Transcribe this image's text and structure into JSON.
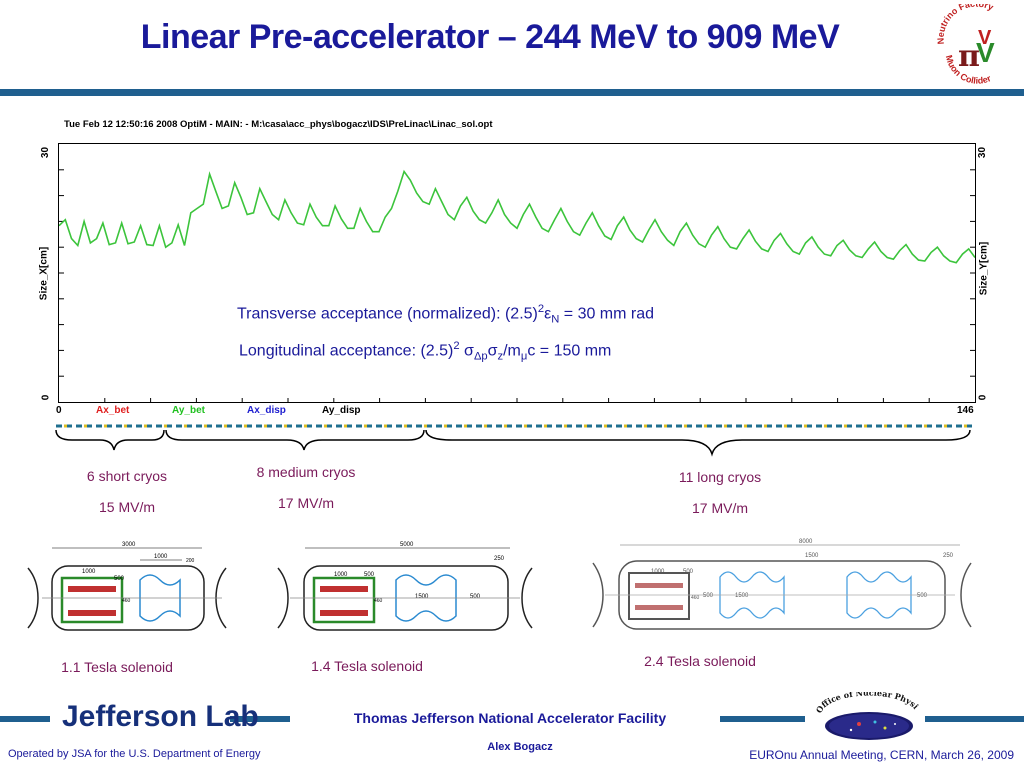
{
  "title": "Linear Pre-accelerator – 244 MeV to 909 MeV",
  "logo": {
    "lines": [
      "Neutrino Factory",
      "Muon Collider"
    ],
    "glyph": "πV"
  },
  "plot": {
    "header": "Tue Feb 12 12:50:16 2008    OptiM - MAIN: - M:\\casa\\acc_phys\\bogacz\\IDS\\PreLinac\\Linac_sol.opt",
    "left_axis_label": "Size_X[cm]",
    "right_axis_label": "Size_Y[cm]",
    "y_max_label": "30",
    "y_min_label": "0",
    "x_min_label": "0",
    "x_max_label": "146",
    "legend": [
      {
        "label": "Ax_bet",
        "color": "#e02020"
      },
      {
        "label": "Ay_bet",
        "color": "#20c020"
      },
      {
        "label": "Ax_disp",
        "color": "#2020d0"
      },
      {
        "label": "Ay_disp",
        "color": "#000000"
      }
    ],
    "line_color": "#3cc43c"
  },
  "chart_data": {
    "type": "line",
    "x": [
      0,
      1,
      2,
      3,
      4,
      5,
      6,
      7,
      8,
      9,
      10,
      11,
      12,
      13,
      14,
      15,
      16,
      17,
      18,
      19,
      20,
      21,
      22,
      23,
      24,
      25,
      26,
      27,
      28,
      29,
      30,
      31,
      32,
      33,
      34,
      35,
      36,
      37,
      38,
      39,
      40,
      41,
      42,
      43,
      44,
      45,
      46,
      47,
      48,
      49,
      50,
      51,
      52,
      53,
      54,
      55,
      56,
      57,
      58,
      59,
      60,
      61,
      62,
      63,
      64,
      65,
      66,
      67,
      68,
      69,
      70,
      71,
      72,
      73,
      74,
      75,
      76,
      77,
      78,
      79,
      80,
      81,
      82,
      83,
      84,
      85,
      86,
      87,
      88,
      89,
      90,
      91,
      92,
      93,
      94,
      95,
      96,
      97,
      98,
      99,
      100,
      101,
      102,
      103,
      104,
      105,
      106,
      107,
      108,
      109,
      110,
      111,
      112,
      113,
      114,
      115,
      116,
      117,
      118,
      119,
      120,
      121,
      122,
      123,
      124,
      125,
      126,
      127,
      128,
      129,
      130,
      131,
      132,
      133,
      134,
      135,
      136,
      137,
      138,
      139,
      140,
      141,
      142,
      143,
      144,
      145,
      146
    ],
    "series": [
      {
        "values": [
          20.5,
          21.2,
          19.0,
          18.2,
          21.0,
          18.5,
          19.0,
          20.8,
          18.3,
          18.5,
          20.8,
          18.4,
          18.6,
          20.5,
          18.3,
          18.2,
          20.5,
          18.0,
          18.5,
          20.6,
          18.2,
          22.0,
          22.5,
          23.0,
          26.5,
          24.5,
          22.5,
          22.8,
          25.5,
          23.8,
          21.8,
          22.0,
          24.8,
          23.3,
          21.8,
          21.2,
          23.5,
          22.0,
          20.8,
          20.6,
          23.0,
          21.5,
          20.5,
          20.5,
          22.8,
          21.3,
          20.2,
          20.2,
          22.5,
          21.0,
          19.8,
          19.8,
          21.5,
          22.5,
          24.5,
          26.8,
          25.8,
          24.3,
          23.3,
          23.0,
          24.8,
          23.3,
          21.8,
          21.2,
          22.8,
          23.8,
          22.2,
          21.2,
          20.8,
          22.0,
          23.5,
          21.8,
          20.8,
          20.2,
          21.8,
          23.0,
          21.5,
          20.2,
          19.8,
          21.2,
          22.5,
          21.0,
          19.8,
          19.4,
          20.8,
          22.0,
          20.5,
          19.3,
          18.9,
          20.5,
          21.5,
          20.0,
          19.0,
          18.6,
          20.0,
          21.2,
          19.8,
          18.8,
          18.2,
          19.8,
          20.8,
          19.4,
          18.4,
          18.0,
          19.4,
          20.4,
          19.0,
          18.0,
          17.8,
          19.0,
          20.0,
          18.7,
          17.8,
          17.5,
          18.8,
          19.6,
          18.4,
          17.5,
          17.2,
          18.5,
          19.2,
          18.0,
          17.2,
          17.0,
          18.2,
          18.8,
          17.7,
          17.0,
          16.8,
          17.8,
          18.6,
          17.5,
          16.8,
          16.6,
          17.6,
          18.3,
          17.2,
          16.5,
          16.4,
          17.4,
          18.0,
          17.0,
          16.4,
          16.2,
          17.2,
          17.8,
          16.8
        ]
      }
    ],
    "xlim": [
      0,
      146
    ],
    "ylim": [
      0,
      30
    ],
    "ylabel": "Size_X[cm]"
  },
  "annotations": {
    "transverse": "Transverse acceptance (normalized): (2.5)",
    "transverse_sup": "2",
    "transverse_eps": "ε",
    "transverse_sub": "N",
    "transverse_tail": " = 30 mm rad",
    "longitudinal": "Longitudinal acceptance: (2.5)",
    "longitudinal_sup": "2",
    "longitudinal_sigma1": " σ",
    "longitudinal_sub1": "Δp",
    "longitudinal_sigma2": "σ",
    "longitudinal_sub2": "z",
    "longitudinal_mid": "/m",
    "longitudinal_sub3": "μ",
    "longitudinal_tail": "c = 150 mm"
  },
  "sections": [
    {
      "name": "6 short cryos",
      "field": "15 MV/m"
    },
    {
      "name": "8 medium cryos",
      "field": "17 MV/m"
    },
    {
      "name": "11 long cryos",
      "field": "17 MV/m"
    }
  ],
  "cryos": [
    {
      "caption": "1.1 Tesla solenoid",
      "dims": [
        "3000",
        "1000",
        "200",
        "1000",
        "500",
        "460",
        "200",
        "200"
      ]
    },
    {
      "caption": "1.4 Tesla solenoid",
      "dims": [
        "5000",
        "250",
        "1000",
        "500",
        "460",
        "1500",
        "500"
      ]
    },
    {
      "caption": "2.4 Tesla solenoid",
      "dims": [
        "8000",
        "1500",
        "250",
        "1000",
        "500",
        "460",
        "500",
        "1500",
        "500"
      ]
    }
  ],
  "footer": {
    "lab": "Jefferson Lab",
    "facility": "Thomas Jefferson National Accelerator Facility",
    "author": "Alex Bogacz",
    "left": "Operated by JSA for the U.S. Department of Energy",
    "right": "EUROnu Annual Meeting, CERN, March 26, 2009",
    "onp_text": "Office of Nuclear Physics"
  }
}
